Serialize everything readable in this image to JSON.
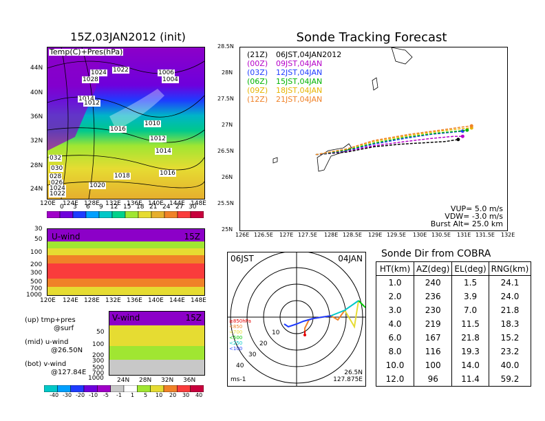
{
  "titles": {
    "left": "15Z,03JAN2012 (init)",
    "right": "Sonde Tracking Forecast",
    "table": "Sonde Dir from COBRA"
  },
  "map_left": {
    "label": "Temp(C)+Pres(hPa)",
    "lat_ticks": [
      "44N",
      "40N",
      "36N",
      "32N",
      "28N",
      "24N"
    ],
    "lon_ticks": [
      "120E",
      "124E",
      "128E",
      "132E",
      "136E",
      "140E",
      "144E",
      "148E"
    ],
    "pressure_labels": [
      "1024",
      "1022",
      "1028",
      "1006",
      "1004",
      "1014",
      "1012",
      "1010",
      "1016",
      "1012",
      "1014",
      "1018",
      "1016",
      "1020",
      "032",
      "030",
      "028",
      "026",
      "1024",
      "1022"
    ],
    "colorbar_ticks": [
      "0",
      "3",
      "6",
      "9",
      "12",
      "15",
      "18",
      "21",
      "24",
      "27",
      "30"
    ],
    "colorbar_colors": [
      "#a000c8",
      "#6e00dc",
      "#1e3cff",
      "#00a0ff",
      "#00c8c8",
      "#00d28c",
      "#a0e632",
      "#e6dc32",
      "#e6af2d",
      "#f08228",
      "#fa3c3c",
      "#c8003c"
    ]
  },
  "u_wind": {
    "label": "U-wind",
    "time": "15Z",
    "y_ticks": [
      "30",
      "50",
      "100",
      "200",
      "300",
      "500",
      "700",
      "1000"
    ],
    "x_ticks": [
      "120E",
      "124E",
      "128E",
      "132E",
      "136E",
      "140E",
      "144E",
      "148E"
    ]
  },
  "v_wind": {
    "label": "V-wind",
    "time": "15Z",
    "y_ticks": [
      "50",
      "100",
      "200",
      "300",
      "500",
      "700",
      "1000"
    ],
    "x_ticks": [
      "24N",
      "28N",
      "32N",
      "36N"
    ]
  },
  "legend_notes": [
    {
      "top": "(up) tmp+pres",
      "bot": "@surf"
    },
    {
      "top": "(mid) u-wind",
      "bot": "@26.50N"
    },
    {
      "top": "(bot) v-wind",
      "bot": "@127.84E"
    }
  ],
  "wind_colorbar": {
    "ticks": [
      "-40",
      "-30",
      "-20",
      "-10",
      "-5",
      "-1",
      "1",
      "5",
      "10",
      "20",
      "30",
      "40"
    ],
    "colors": [
      "#00c8c8",
      "#00a0ff",
      "#1e3cff",
      "#6e00dc",
      "#a000c8",
      "#c8c8c8",
      "#fff",
      "#a0e632",
      "#e6dc32",
      "#f08228",
      "#fa3c3c",
      "#c8003c"
    ]
  },
  "track_map": {
    "lat_ticks": [
      "28.5N",
      "28N",
      "27.5N",
      "27N",
      "26.5N",
      "26N",
      "25.5N",
      "25N"
    ],
    "lon_ticks": [
      "126E",
      "126.5E",
      "127E",
      "127.5E",
      "128E",
      "128.5E",
      "129E",
      "129.5E",
      "130E",
      "130.5E",
      "131E",
      "131.5E",
      "132E"
    ],
    "legend": [
      {
        "code": "(21Z)",
        "label": "06JST,04JAN2012",
        "color": "#000000"
      },
      {
        "code": "(00Z)",
        "label": "09JST,04JAN",
        "color": "#b400c8"
      },
      {
        "code": "(03Z)",
        "label": "12JST,04JAN",
        "color": "#1e3cff"
      },
      {
        "code": "(06Z)",
        "label": "15JST,04JAN",
        "color": "#00b400"
      },
      {
        "code": "(09Z)",
        "label": "18JST,04JAN",
        "color": "#e6b400"
      },
      {
        "code": "(12Z)",
        "label": "21JST,04JAN",
        "color": "#f08228"
      }
    ],
    "params": [
      "VUP= 5.0 m/s",
      "VDW= -3.0 m/s",
      "Burst Alt= 25.0 km"
    ]
  },
  "hodograph": {
    "left_label": "06JST",
    "right_label": "04JAN",
    "unit": "ms-1",
    "location": "26.5N",
    "location2": "127.875E",
    "ring_labels": [
      "10",
      "20",
      "30",
      "40"
    ],
    "pressure_legend": [
      {
        "label": "≥850hPa",
        "color": "#e60000"
      },
      {
        "label": "<850",
        "color": "#f08228"
      },
      {
        "label": "<700",
        "color": "#e6dc32"
      },
      {
        "label": "<500",
        "color": "#00c800"
      },
      {
        "label": "<250",
        "color": "#00c8c8"
      },
      {
        "label": "<100",
        "color": "#1e3cff"
      }
    ]
  },
  "table": {
    "headers": [
      "HT(km)",
      "AZ(deg)",
      "EL(deg)",
      "RNG(km)"
    ],
    "rows": [
      [
        "1.0",
        "240",
        "1.5",
        "24.1"
      ],
      [
        "2.0",
        "236",
        "3.9",
        "24.0"
      ],
      [
        "3.0",
        "230",
        "7.0",
        "21.8"
      ],
      [
        "4.0",
        "219",
        "11.5",
        "18.3"
      ],
      [
        "6.0",
        "167",
        "21.8",
        "15.2"
      ],
      [
        "8.0",
        "116",
        "19.3",
        "23.2"
      ],
      [
        "10.0",
        "100",
        "14.0",
        "40.0"
      ],
      [
        "12.0",
        "96",
        "11.4",
        "59.2"
      ]
    ]
  },
  "chart_data": [
    {
      "type": "line",
      "title": "Sonde Tracking Forecast",
      "xlabel": "",
      "ylabel": "",
      "xlim": [
        126,
        132
      ],
      "ylim": [
        25,
        28.5
      ],
      "series": [
        {
          "name": "(21Z) 06JST,04JAN2012",
          "color": "#000000",
          "x": [
            127.7,
            128.4,
            129.0,
            129.6,
            130.2,
            130.6,
            130.9
          ],
          "y": [
            26.45,
            26.5,
            26.6,
            26.65,
            26.68,
            26.7,
            26.74
          ]
        },
        {
          "name": "(00Z) 09JST,04JAN",
          "color": "#b400c8",
          "x": [
            127.7,
            128.4,
            129.0,
            129.7,
            130.3,
            130.8,
            131.0
          ],
          "y": [
            26.45,
            26.52,
            26.62,
            26.7,
            26.76,
            26.8,
            26.8
          ]
        },
        {
          "name": "(03Z) 12JST,04JAN",
          "color": "#1e3cff",
          "x": [
            127.7,
            128.4,
            129.0,
            129.7,
            130.3,
            130.8,
            131.0
          ],
          "y": [
            26.45,
            26.53,
            26.65,
            26.76,
            26.84,
            26.88,
            26.9
          ]
        },
        {
          "name": "(06Z) 15JST,04JAN",
          "color": "#00b400",
          "x": [
            127.7,
            128.4,
            129.0,
            129.7,
            130.4,
            130.9,
            131.1
          ],
          "y": [
            26.45,
            26.54,
            26.67,
            26.78,
            26.86,
            26.9,
            26.92
          ]
        },
        {
          "name": "(09Z) 18JST,04JAN",
          "color": "#e6b400",
          "x": [
            127.7,
            128.4,
            129.0,
            129.8,
            130.5,
            131.0,
            131.2
          ],
          "y": [
            26.45,
            26.56,
            26.7,
            26.82,
            26.9,
            26.95,
            26.96
          ]
        },
        {
          "name": "(12Z) 21JST,04JAN",
          "color": "#f08228",
          "x": [
            127.7,
            128.4,
            129.0,
            129.8,
            130.5,
            131.0,
            131.2
          ],
          "y": [
            26.45,
            26.56,
            26.72,
            26.84,
            26.92,
            26.98,
            27.0
          ]
        }
      ]
    },
    {
      "type": "table",
      "title": "Sonde Dir from COBRA",
      "columns": [
        "HT(km)",
        "AZ(deg)",
        "EL(deg)",
        "RNG(km)"
      ],
      "rows": [
        [
          1.0,
          240,
          1.5,
          24.1
        ],
        [
          2.0,
          236,
          3.9,
          24.0
        ],
        [
          3.0,
          230,
          7.0,
          21.8
        ],
        [
          4.0,
          219,
          11.5,
          18.3
        ],
        [
          6.0,
          167,
          21.8,
          15.2
        ],
        [
          8.0,
          116,
          19.3,
          23.2
        ],
        [
          10.0,
          100,
          14.0,
          40.0
        ],
        [
          12.0,
          96,
          11.4,
          59.2
        ]
      ]
    }
  ]
}
